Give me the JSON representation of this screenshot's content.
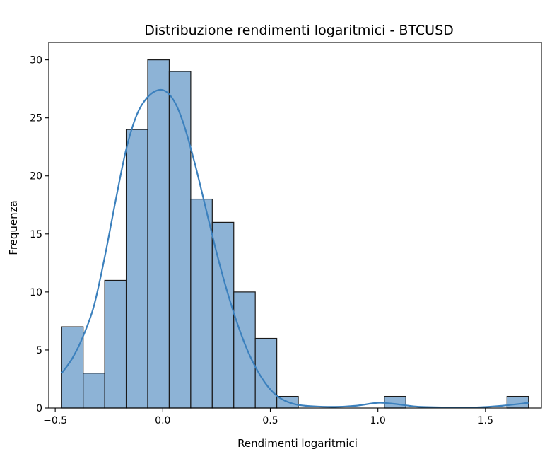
{
  "chart_data": {
    "type": "bar",
    "title": "Distribuzione rendimenti logaritmici - BTCUSD",
    "xlabel": "Rendimenti logaritmici",
    "ylabel": "Frequenza",
    "xlim": [
      -0.53,
      1.76
    ],
    "ylim": [
      0,
      31.5
    ],
    "xticks": [
      -0.5,
      0.0,
      0.5,
      1.0,
      1.5
    ],
    "xtick_labels": [
      "−0.5",
      "0.0",
      "0.5",
      "1.0",
      "1.5"
    ],
    "yticks": [
      0,
      5,
      10,
      15,
      20,
      25,
      30
    ],
    "ytick_labels": [
      "0",
      "5",
      "10",
      "15",
      "20",
      "25",
      "30"
    ],
    "grid": false,
    "bins": [
      {
        "x0": -0.47,
        "x1": -0.37,
        "count": 7
      },
      {
        "x0": -0.37,
        "x1": -0.27,
        "count": 3
      },
      {
        "x0": -0.27,
        "x1": -0.17,
        "count": 11
      },
      {
        "x0": -0.17,
        "x1": -0.07,
        "count": 24
      },
      {
        "x0": -0.07,
        "x1": 0.03,
        "count": 30
      },
      {
        "x0": 0.03,
        "x1": 0.13,
        "count": 29
      },
      {
        "x0": 0.13,
        "x1": 0.23,
        "count": 18
      },
      {
        "x0": 0.23,
        "x1": 0.33,
        "count": 16
      },
      {
        "x0": 0.33,
        "x1": 0.43,
        "count": 10
      },
      {
        "x0": 0.43,
        "x1": 0.53,
        "count": 6
      },
      {
        "x0": 0.53,
        "x1": 0.63,
        "count": 1
      },
      {
        "x0": 1.03,
        "x1": 1.13,
        "count": 1
      },
      {
        "x0": 1.6,
        "x1": 1.7,
        "count": 1
      }
    ],
    "kde": {
      "x": [
        -0.47,
        -0.42,
        -0.37,
        -0.32,
        -0.27,
        -0.22,
        -0.17,
        -0.12,
        -0.07,
        -0.02,
        0.02,
        0.06,
        0.1,
        0.15,
        0.2,
        0.25,
        0.3,
        0.35,
        0.4,
        0.45,
        0.5,
        0.55,
        0.62,
        0.7,
        0.8,
        0.9,
        1.0,
        1.08,
        1.18,
        1.3,
        1.45,
        1.58,
        1.7
      ],
      "y": [
        3.0,
        4.3,
        6.2,
        8.8,
        13.0,
        17.8,
        22.3,
        25.3,
        26.8,
        27.4,
        27.2,
        26.2,
        24.3,
        21.0,
        17.2,
        13.4,
        10.0,
        7.1,
        4.7,
        2.9,
        1.6,
        0.8,
        0.3,
        0.15,
        0.1,
        0.2,
        0.45,
        0.35,
        0.12,
        0.05,
        0.05,
        0.2,
        0.45
      ]
    }
  }
}
